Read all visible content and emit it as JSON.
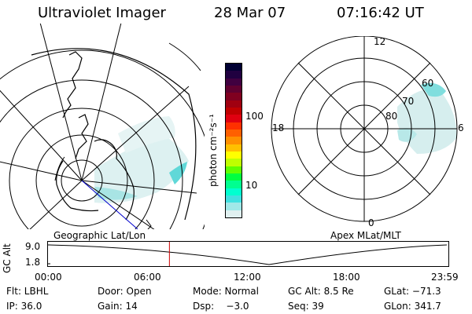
{
  "header": {
    "title": "Ultraviolet Imager",
    "date": "28 Mar 07",
    "time": "07:16:42 UT"
  },
  "panels": {
    "left_label": "Geographic Lat/Lon",
    "right_label": "Apex MLat/MLT"
  },
  "colorbar": {
    "unit_label": "photon cm⁻²s⁻¹",
    "tick_100": "100",
    "tick_10": "10",
    "colors": [
      "#000033",
      "#200040",
      "#400040",
      "#600030",
      "#800020",
      "#a00010",
      "#c00000",
      "#e00010",
      "#ff3000",
      "#ff6000",
      "#ff9000",
      "#ffc000",
      "#ffff00",
      "#c0ff00",
      "#60ff00",
      "#00ff40",
      "#00ff90",
      "#00ffd0",
      "#40e0e0",
      "#a0e8e8",
      "#e0f0f0"
    ]
  },
  "polar": {
    "mlt_12": "12",
    "mlt_18": "18",
    "mlt_6": "6",
    "mlt_0": "0",
    "lat_60": "60",
    "lat_70": "70",
    "lat_80": "80"
  },
  "timeline": {
    "ylabel": "GC Alt",
    "y_top": "9.0",
    "y_bottom": "1.8",
    "ticks": [
      "00:00",
      "06:00",
      "12:00",
      "18:00",
      "23:59"
    ],
    "marker_time": "07:16:42",
    "marker_color": "#cc0000"
  },
  "info": {
    "row1": {
      "flt": "Flt: LBHL",
      "door": "Door: Open",
      "mode": "Mode: Normal",
      "gcalt": "GC Alt: 8.5 Re",
      "glat": "GLat: −71.3"
    },
    "row2": {
      "ip": "IP: 36.0",
      "gain": "Gain: 14",
      "dsp": "Dsp:    −3.0",
      "seq": "Seq: 39",
      "glon": "GLon: 341.7"
    }
  }
}
